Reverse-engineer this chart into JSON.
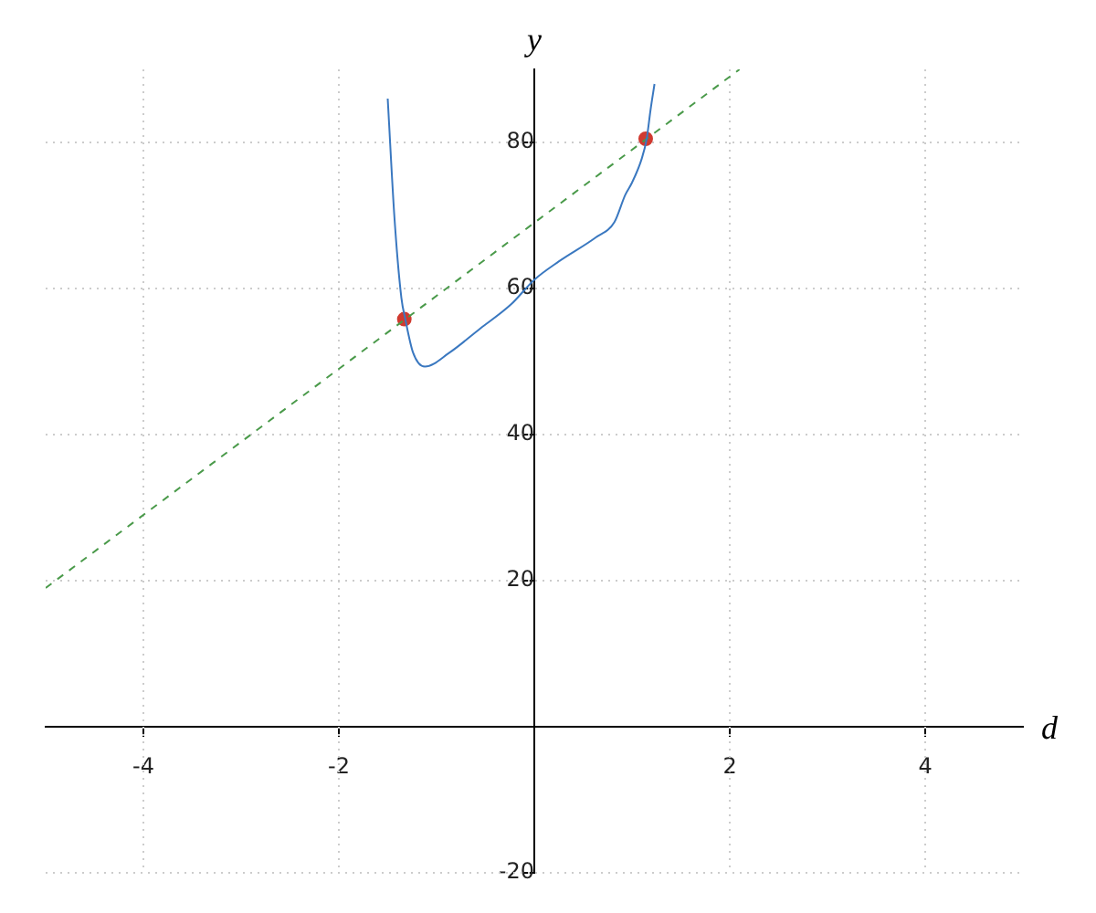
{
  "chart_data": {
    "type": "line",
    "xlabel": "d",
    "ylabel": "y",
    "xlim": [
      -5,
      5
    ],
    "ylim": [
      -20,
      90
    ],
    "xticks": [
      -4,
      -2,
      2,
      4
    ],
    "yticks": [
      -20,
      20,
      40,
      60,
      80
    ],
    "grid": true,
    "series": [
      {
        "color": "#3a78c0",
        "line_style": "solid",
        "marker": "none",
        "x": [
          -1.5,
          -1.43,
          -1.36,
          -1.32,
          -1.24,
          -1.12,
          -0.87,
          -0.555,
          -0.24,
          0,
          0.25,
          0.63,
          0.82,
          0.93,
          1.0,
          1.1,
          1.15,
          1.19,
          1.23
        ],
        "values": [
          86,
          69.5,
          58.7,
          55.8,
          51.2,
          49.3,
          51.2,
          54.5,
          57.8,
          61.2,
          63.7,
          67,
          69.1,
          72.8,
          74.5,
          77.8,
          80.5,
          84.5,
          88
        ]
      },
      {
        "color": "#4a9a4a",
        "line_style": "dashed",
        "marker": "none",
        "x": [
          -5,
          2.1
        ],
        "values": [
          19,
          90
        ]
      },
      {
        "type": "scatter",
        "color": "#d03a30",
        "marker": "circle",
        "x": [
          -1.33,
          1.14
        ],
        "values": [
          55.8,
          80.5
        ]
      }
    ]
  }
}
